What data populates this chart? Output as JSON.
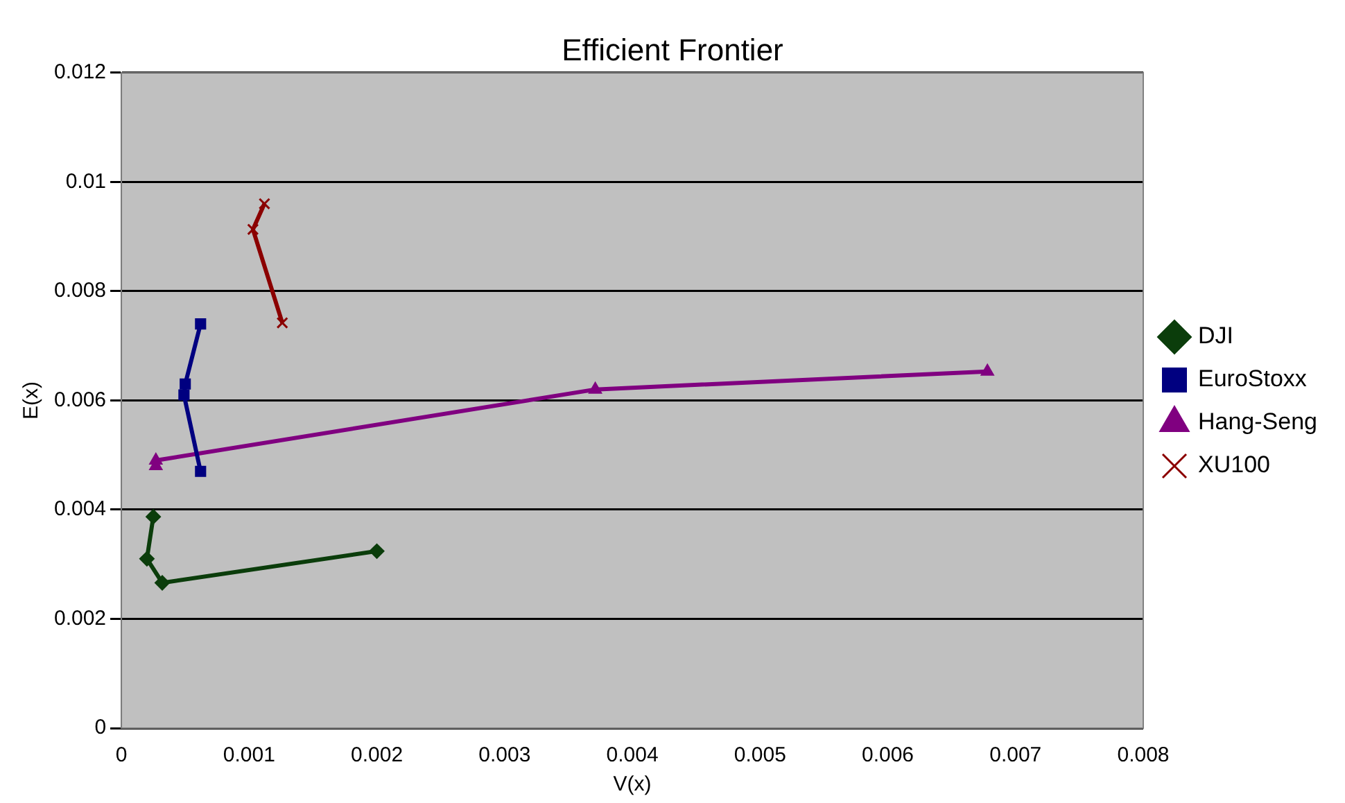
{
  "chart_data": {
    "type": "line",
    "title": "Efficient Frontier",
    "xlabel": "V(x)",
    "ylabel": "E(x)",
    "xlim": [
      0,
      0.008
    ],
    "xticks": [
      0,
      0.001,
      0.002,
      0.003,
      0.004,
      0.005,
      0.006,
      0.007,
      0.008
    ],
    "ylim": [
      0,
      0.012
    ],
    "yticks": [
      0,
      0.002,
      0.004,
      0.006,
      0.008,
      0.01,
      0.012
    ],
    "grid": "y",
    "legend": "right",
    "line_style": "solid",
    "series": [
      {
        "name": "DJI",
        "color": "#0b3d0b",
        "marker": "diamond",
        "x": [
          0.00025,
          0.0002,
          0.00032,
          0.002
        ],
        "values": [
          0.00387,
          0.0031,
          0.00266,
          0.00324
        ]
      },
      {
        "name": "EuroStoxx",
        "color": "#000080",
        "marker": "square",
        "x": [
          0.00062,
          0.0005,
          0.00049,
          0.00062
        ],
        "values": [
          0.0074,
          0.0063,
          0.0061,
          0.0047
        ]
      },
      {
        "name": "Hang-Seng",
        "color": "#800080",
        "marker": "triangle",
        "x": [
          0.00027,
          0.00027,
          0.00371,
          0.00678
        ],
        "values": [
          0.0048,
          0.0049,
          0.0062,
          0.00653
        ]
      },
      {
        "name": "XU100",
        "color": "#8b0000",
        "marker": "cross",
        "x": [
          0.00112,
          0.00103,
          0.00126
        ],
        "values": [
          0.0096,
          0.00913,
          0.00742
        ]
      }
    ]
  }
}
